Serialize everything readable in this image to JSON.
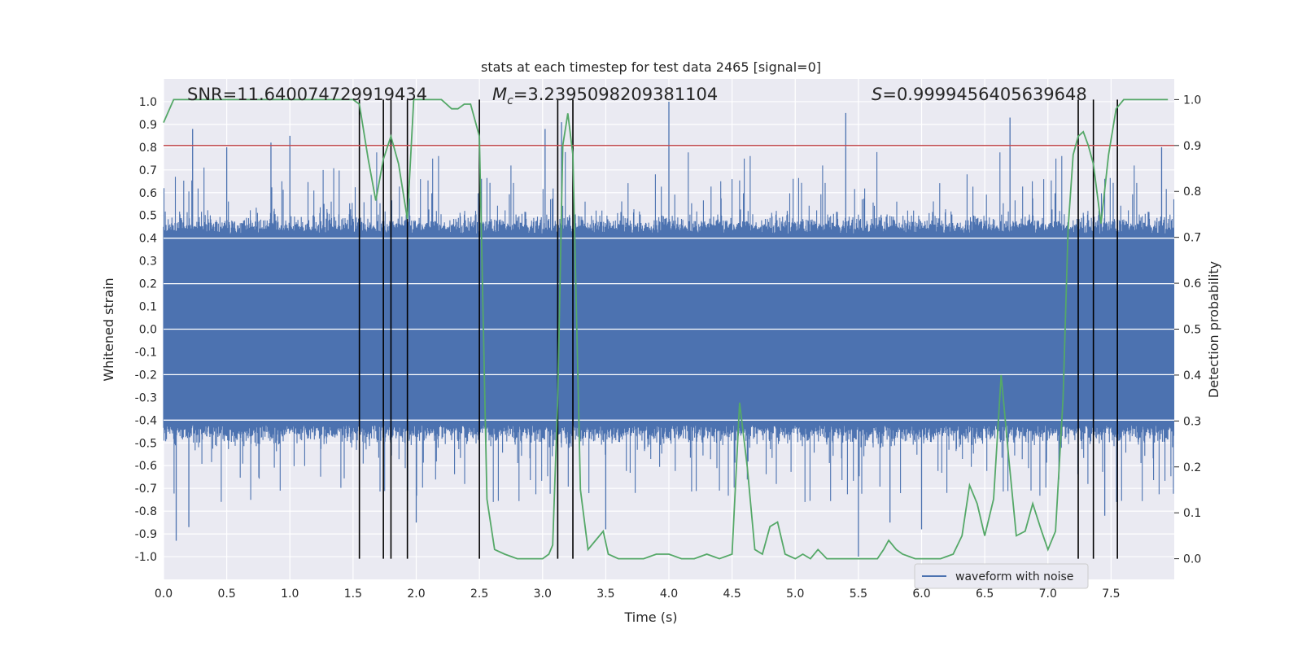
{
  "chart_data": {
    "type": "line",
    "title": "stats at each timestep for test data 2465 [signal=0]",
    "xlabel": "Time (s)",
    "ylabel": "Whitened strain",
    "y2label": "Detection probability",
    "xlim": [
      0,
      8
    ],
    "ylim": [
      -1.1,
      1.1
    ],
    "y2lim": [
      -0.045,
      1.045
    ],
    "xticks": [
      "0.0",
      "0.5",
      "1.0",
      "1.5",
      "2.0",
      "2.5",
      "3.0",
      "3.5",
      "4.0",
      "4.5",
      "5.0",
      "5.5",
      "6.0",
      "6.5",
      "7.0",
      "7.5"
    ],
    "yticks": [
      "1.0",
      "0.9",
      "0.8",
      "0.7",
      "0.6",
      "0.5",
      "0.4",
      "0.3",
      "0.2",
      "0.1",
      "0.0",
      "-0.1",
      "-0.2",
      "-0.3",
      "-0.4",
      "-0.5",
      "-0.6",
      "-0.7",
      "-0.8",
      "-0.9",
      "-1.0"
    ],
    "y2ticks": [
      "1.0",
      "0.9",
      "0.8",
      "0.7",
      "0.6",
      "0.5",
      "0.4",
      "0.3",
      "0.2",
      "0.1",
      "0.0"
    ],
    "grid": true,
    "legend": {
      "placement": "bottom-right",
      "entries": [
        "waveform with noise"
      ]
    },
    "annotations": {
      "snr_label": "SNR=11.640074729919434",
      "mc_symbol": "M",
      "mc_sub": "c",
      "mc_value": "=3.2395098209381104",
      "s_symbol": "S",
      "s_value": "=0.9999456405639648"
    },
    "threshold": 0.9,
    "vertical_lines": [
      1.55,
      1.74,
      1.8,
      1.93,
      2.5,
      3.12,
      3.24,
      7.24,
      7.36,
      7.55
    ],
    "series": [
      {
        "name": "waveform with noise",
        "axis": "left",
        "kind": "noise",
        "envelope_low": [
          -0.4,
          0.4
        ],
        "peak_high": [
          0.88,
          0.9,
          0.85,
          0.91,
          1.0,
          0.88,
          0.95,
          0.93,
          0.91,
          0.87,
          0.88,
          0.86,
          0.91
        ],
        "peak_low": [
          -0.93,
          -0.87,
          -0.83,
          -0.85,
          -0.88,
          -1.0,
          -0.85,
          -0.82
        ]
      },
      {
        "name": "",
        "axis": "right",
        "x": [
          0.0,
          0.08,
          0.5,
          1.0,
          1.5,
          1.55,
          1.62,
          1.68,
          1.74,
          1.8,
          1.86,
          1.93,
          1.98,
          2.1,
          2.2,
          2.28,
          2.33,
          2.38,
          2.43,
          2.5,
          2.56,
          2.62,
          2.7,
          2.8,
          2.9,
          3.0,
          3.05,
          3.08,
          3.12,
          3.16,
          3.2,
          3.24,
          3.3,
          3.36,
          3.42,
          3.48,
          3.52,
          3.6,
          3.7,
          3.8,
          3.9,
          4.0,
          4.1,
          4.2,
          4.3,
          4.4,
          4.5,
          4.56,
          4.62,
          4.68,
          4.74,
          4.8,
          4.86,
          4.92,
          5.0,
          5.06,
          5.12,
          5.18,
          5.25,
          5.35,
          5.45,
          5.55,
          5.65,
          5.7,
          5.74,
          5.8,
          5.85,
          5.95,
          6.05,
          6.15,
          6.25,
          6.32,
          6.38,
          6.44,
          6.5,
          6.57,
          6.63,
          6.69,
          6.75,
          6.82,
          6.88,
          6.95,
          7.0,
          7.06,
          7.12,
          7.16,
          7.2,
          7.24,
          7.28,
          7.32,
          7.36,
          7.42,
          7.48,
          7.54,
          7.6,
          7.67,
          7.75,
          7.85,
          7.95
        ],
        "y": [
          0.95,
          1.0,
          1.0,
          1.0,
          1.0,
          0.99,
          0.87,
          0.78,
          0.87,
          0.92,
          0.86,
          0.74,
          1.0,
          1.0,
          1.0,
          0.98,
          0.98,
          0.99,
          0.99,
          0.92,
          0.13,
          0.02,
          0.01,
          0.0,
          0.0,
          0.0,
          0.01,
          0.03,
          0.35,
          0.9,
          0.97,
          0.88,
          0.15,
          0.02,
          0.04,
          0.06,
          0.01,
          0.0,
          0.0,
          0.0,
          0.01,
          0.01,
          0.0,
          0.0,
          0.01,
          0.0,
          0.01,
          0.34,
          0.2,
          0.02,
          0.01,
          0.07,
          0.08,
          0.01,
          0.0,
          0.01,
          0.0,
          0.02,
          0.0,
          0.0,
          0.0,
          0.0,
          0.0,
          0.02,
          0.04,
          0.02,
          0.01,
          0.0,
          0.0,
          0.0,
          0.01,
          0.05,
          0.16,
          0.12,
          0.05,
          0.13,
          0.4,
          0.22,
          0.05,
          0.06,
          0.12,
          0.06,
          0.02,
          0.06,
          0.35,
          0.72,
          0.88,
          0.92,
          0.93,
          0.9,
          0.86,
          0.73,
          0.88,
          0.98,
          1.0,
          1.0,
          1.0,
          1.0,
          1.0
        ]
      }
    ],
    "colors": {
      "background": "#eaeaf2",
      "grid": "#ffffff",
      "waveform": "#4c72b0",
      "probability": "#55a868",
      "threshold": "#c44e52",
      "vlines": "#000000"
    }
  }
}
